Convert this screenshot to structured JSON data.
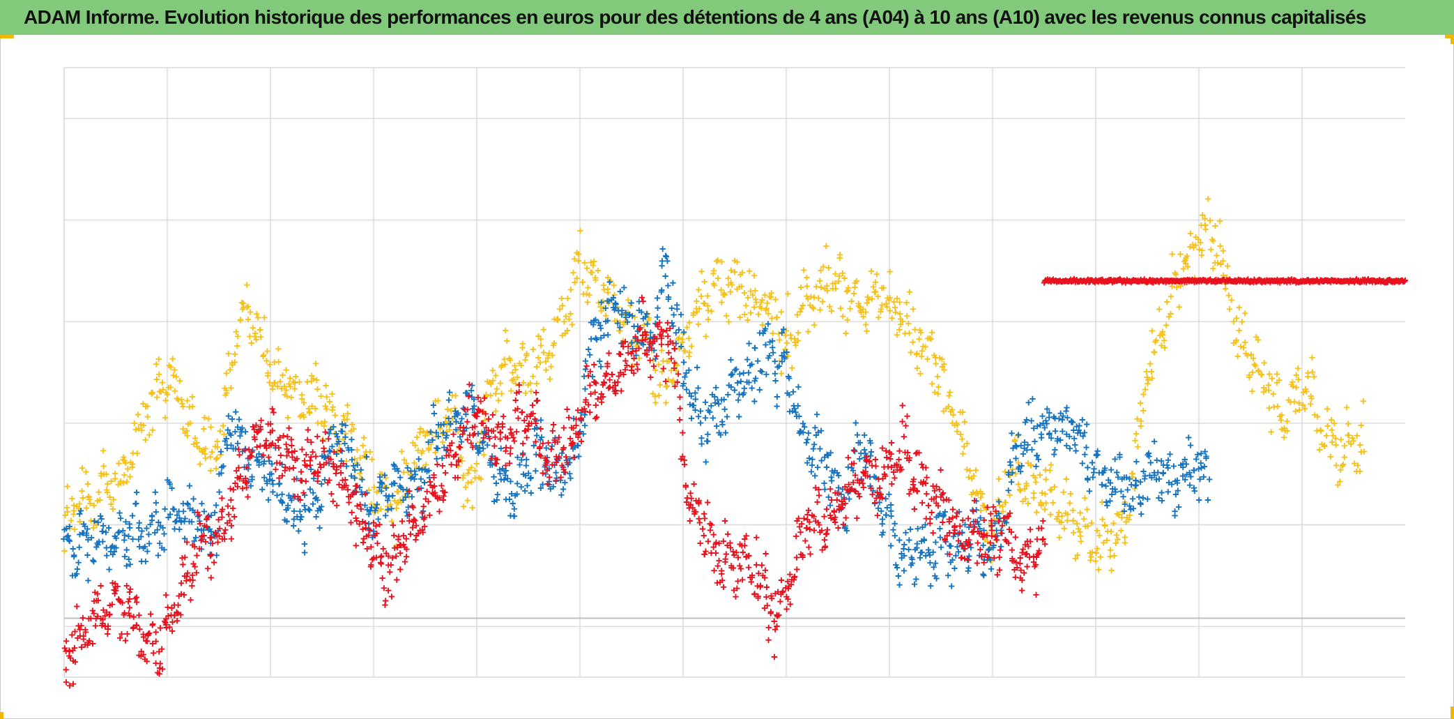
{
  "title": "ADAM Informe. Evolution historique des performances en euros pour des détentions de 4 ans (A04) à 10 ans (A10) avec les revenus connus capitalisés",
  "colors": {
    "title_bar": "#82c97c",
    "grid": "#d9d9d9",
    "zero_line": "#bfbfbf",
    "accent_corner": "#f2b705"
  },
  "chart_data": {
    "type": "scatter",
    "marker": "+",
    "title": "ADAM Informe. Evolution historique des performances en euros pour des détentions de 4 ans (A04) à 10 ans (A10) avec les revenus connus capitalisés",
    "xlabel": "",
    "ylabel": "",
    "x_range": [
      0,
      13
    ],
    "y_range": [
      -15,
      45
    ],
    "grid": true,
    "x_gridlines": [
      1,
      2,
      3,
      4,
      5,
      6,
      7,
      8,
      9,
      10,
      11,
      12
    ],
    "y_gridlines": [
      -10,
      0,
      10,
      20,
      30,
      40
    ],
    "zero_line": -9.2,
    "tick_labels_visible": false,
    "legend": "none",
    "series": [
      {
        "color": "#f5c11a",
        "x_start": 0.0,
        "x_end": 12.6,
        "points": [
          [
            0.0,
            0
          ],
          [
            0.3,
            3
          ],
          [
            0.6,
            5
          ],
          [
            0.85,
            12
          ],
          [
            1.05,
            14
          ],
          [
            1.3,
            8
          ],
          [
            1.5,
            7
          ],
          [
            1.65,
            18
          ],
          [
            1.8,
            22
          ],
          [
            2.0,
            14
          ],
          [
            2.2,
            13
          ],
          [
            2.45,
            12
          ],
          [
            2.7,
            9
          ],
          [
            2.95,
            6
          ],
          [
            3.2,
            1
          ],
          [
            3.45,
            8
          ],
          [
            3.75,
            11
          ],
          [
            3.95,
            2
          ],
          [
            4.1,
            13
          ],
          [
            4.3,
            16
          ],
          [
            4.55,
            15
          ],
          [
            4.8,
            19
          ],
          [
            5.0,
            26
          ],
          [
            5.2,
            23
          ],
          [
            5.4,
            20
          ],
          [
            5.65,
            18
          ],
          [
            5.8,
            13
          ],
          [
            6.0,
            18
          ],
          [
            6.2,
            22
          ],
          [
            6.5,
            24
          ],
          [
            6.8,
            21
          ],
          [
            7.0,
            18
          ],
          [
            7.2,
            22
          ],
          [
            7.45,
            24
          ],
          [
            7.7,
            21
          ],
          [
            7.9,
            23
          ],
          [
            8.15,
            20
          ],
          [
            8.4,
            17
          ],
          [
            8.6,
            12
          ],
          [
            8.8,
            5
          ],
          [
            9.0,
            -2
          ],
          [
            9.2,
            6
          ],
          [
            9.5,
            3
          ],
          [
            9.8,
            0
          ],
          [
            10.05,
            -2
          ],
          [
            10.3,
            1
          ],
          [
            10.5,
            15
          ],
          [
            10.7,
            22
          ],
          [
            10.9,
            26
          ],
          [
            11.1,
            30
          ],
          [
            11.2,
            27
          ],
          [
            11.4,
            18
          ],
          [
            11.6,
            15
          ],
          [
            11.8,
            11
          ],
          [
            12.0,
            14
          ],
          [
            12.15,
            11
          ],
          [
            12.35,
            6
          ],
          [
            12.45,
            8
          ]
        ]
      },
      {
        "color": "#1673c0",
        "x_start": 0.0,
        "x_end": 11.1,
        "points": [
          [
            0.0,
            -3
          ],
          [
            0.2,
            -1
          ],
          [
            0.5,
            -2
          ],
          [
            0.8,
            -1
          ],
          [
            1.0,
            1
          ],
          [
            1.3,
            0
          ],
          [
            1.45,
            -1
          ],
          [
            1.6,
            11
          ],
          [
            1.8,
            6
          ],
          [
            2.05,
            4
          ],
          [
            2.25,
            0
          ],
          [
            2.45,
            3
          ],
          [
            2.6,
            9
          ],
          [
            2.8,
            6
          ],
          [
            3.0,
            0
          ],
          [
            3.2,
            5
          ],
          [
            3.35,
            3
          ],
          [
            3.55,
            7
          ],
          [
            3.75,
            10
          ],
          [
            3.95,
            11
          ],
          [
            4.15,
            6
          ],
          [
            4.35,
            3
          ],
          [
            4.55,
            7
          ],
          [
            4.75,
            5
          ],
          [
            4.95,
            7
          ],
          [
            5.15,
            19
          ],
          [
            5.35,
            21
          ],
          [
            5.55,
            20
          ],
          [
            5.7,
            18
          ],
          [
            5.85,
            26
          ],
          [
            6.0,
            16
          ],
          [
            6.2,
            10
          ],
          [
            6.4,
            12
          ],
          [
            6.6,
            14
          ],
          [
            6.8,
            17
          ],
          [
            7.0,
            15
          ],
          [
            7.15,
            10
          ],
          [
            7.35,
            6
          ],
          [
            7.55,
            3
          ],
          [
            7.75,
            8
          ],
          [
            7.95,
            2
          ],
          [
            8.15,
            -4
          ],
          [
            8.35,
            -2
          ],
          [
            8.5,
            -1
          ],
          [
            8.65,
            -3
          ],
          [
            8.8,
            -1
          ],
          [
            9.0,
            -3
          ],
          [
            9.2,
            6
          ],
          [
            9.45,
            9
          ],
          [
            9.7,
            10
          ],
          [
            9.95,
            6
          ],
          [
            10.15,
            4
          ],
          [
            10.35,
            3
          ],
          [
            10.55,
            6
          ],
          [
            10.75,
            4
          ],
          [
            10.95,
            6
          ],
          [
            11.05,
            5
          ]
        ]
      },
      {
        "color": "#e8121e",
        "x_start": 0.0,
        "x_end": 9.5,
        "points": [
          [
            0.0,
            -13
          ],
          [
            0.2,
            -11
          ],
          [
            0.4,
            -8
          ],
          [
            0.6,
            -7
          ],
          [
            0.75,
            -11
          ],
          [
            0.9,
            -12
          ],
          [
            1.1,
            -8
          ],
          [
            1.3,
            -2
          ],
          [
            1.55,
            0
          ],
          [
            1.75,
            5
          ],
          [
            1.9,
            9
          ],
          [
            2.05,
            8
          ],
          [
            2.25,
            5
          ],
          [
            2.5,
            7
          ],
          [
            2.65,
            5
          ],
          [
            2.8,
            2
          ],
          [
            3.0,
            -2
          ],
          [
            3.15,
            -5
          ],
          [
            3.35,
            0
          ],
          [
            3.5,
            2
          ],
          [
            3.65,
            4
          ],
          [
            3.85,
            9
          ],
          [
            4.0,
            11
          ],
          [
            4.2,
            8
          ],
          [
            4.4,
            10
          ],
          [
            4.55,
            11
          ],
          [
            4.7,
            6
          ],
          [
            4.9,
            8
          ],
          [
            5.1,
            13
          ],
          [
            5.35,
            15
          ],
          [
            5.55,
            18
          ],
          [
            5.75,
            19
          ],
          [
            5.9,
            17
          ],
          [
            6.0,
            6
          ],
          [
            6.1,
            1
          ],
          [
            6.3,
            -3
          ],
          [
            6.5,
            -4
          ],
          [
            6.7,
            -4
          ],
          [
            6.9,
            -10
          ],
          [
            7.1,
            -2
          ],
          [
            7.3,
            0
          ],
          [
            7.5,
            2
          ],
          [
            7.7,
            5
          ],
          [
            7.9,
            4
          ],
          [
            8.1,
            8
          ],
          [
            8.3,
            4
          ],
          [
            8.5,
            2
          ],
          [
            8.7,
            -1
          ],
          [
            8.9,
            -1
          ],
          [
            9.1,
            -1
          ],
          [
            9.3,
            -4
          ],
          [
            9.45,
            -2
          ]
        ]
      },
      {
        "color": "#e8121e",
        "x_start": 9.5,
        "x_end": 13.0,
        "points": [
          [
            9.5,
            24
          ],
          [
            13.0,
            24
          ]
        ]
      }
    ]
  }
}
